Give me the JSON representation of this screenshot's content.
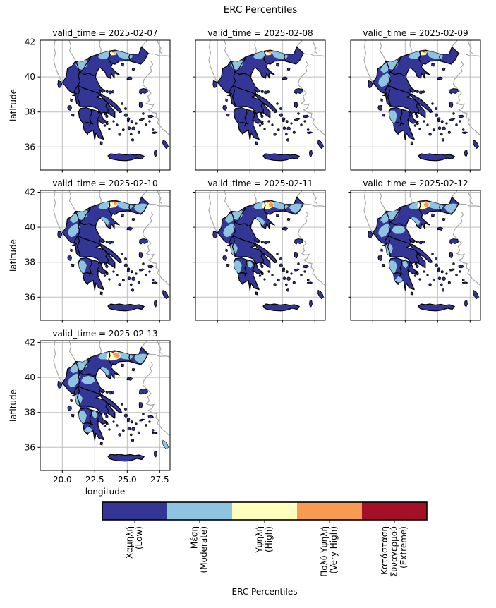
{
  "figure": {
    "title": "ERC Percentiles",
    "background": "#ffffff"
  },
  "axes": {
    "xlabel": "longitude",
    "ylabel": "latitude",
    "x_ticks": [
      "20.0",
      "22.5",
      "25.0",
      "27.5"
    ],
    "y_ticks": [
      "36",
      "38",
      "40",
      "42"
    ]
  },
  "panels": [
    {
      "title": "valid_time = 2025-02-07",
      "hotspot": "s",
      "patches": [
        "pw_mac",
        "pnband_w",
        "pnband_e"
      ]
    },
    {
      "title": "valid_time = 2025-02-08",
      "hotspot": "s",
      "patches": [
        "pw_mac",
        "pnband_w",
        "pnband_e"
      ]
    },
    {
      "title": "valid_time = 2025-02-09",
      "hotspot": "s",
      "patches": [
        "pepirus_n",
        "pw_mac",
        "pnw_epirus",
        "pnband_w",
        "pnband_e",
        "ppelop_w"
      ]
    },
    {
      "title": "valid_time = 2025-02-10",
      "hotspot": "m",
      "patches": [
        "pepirus_n",
        "pw_mac",
        "pnw_epirus",
        "pnband_w",
        "pnband_e",
        "pthrace",
        "pchalkidiki",
        "ppelop_w"
      ]
    },
    {
      "title": "valid_time = 2025-02-11",
      "hotspot": "l",
      "patches": [
        "pepirus_n",
        "pw_mac",
        "pnw_epirus",
        "pnband_w",
        "pnband_e",
        "pthrace",
        "pchalkidiki",
        "pwgreece",
        "ppelop_w",
        "ppelop_ne"
      ]
    },
    {
      "title": "valid_time = 2025-02-12",
      "hotspot": "l",
      "patches": [
        "pepirus_n",
        "pw_mac",
        "pnw_epirus",
        "pnband_w",
        "pnband_e",
        "pthrace",
        "pchalkidiki",
        "pwgreece",
        "pthessaly",
        "ppelop_w",
        "ppelop_ne",
        "ppelop_s"
      ]
    },
    {
      "title": "valid_time = 2025-02-13",
      "hotspot": "xl",
      "patches": [
        "pepirus_n",
        "pw_mac",
        "pnw_epirus",
        "pnband_w",
        "pnband_e",
        "pthrace",
        "pchalkidiki",
        "pwgreece",
        "pthessaly",
        "ppelop_w",
        "ppelop_ne",
        "ppelop_s",
        "prhodes_lb"
      ]
    }
  ],
  "colorbar": {
    "title": "ERC Percentiles",
    "categories": [
      {
        "label_lines": [
          "Χαμηλή",
          "(Low)"
        ],
        "color": "#333695"
      },
      {
        "label_lines": [
          "Μέση",
          "(Moderate)"
        ],
        "color": "#8ec4e0"
      },
      {
        "label_lines": [
          "Υψηλή",
          "(High)"
        ],
        "color": "#ffffbe"
      },
      {
        "label_lines": [
          "Πολύ Υψηλή",
          "(Very High)"
        ],
        "color": "#f89b52"
      },
      {
        "label_lines": [
          "Κατάσταση",
          "Συναγερμού",
          "(Extreme)"
        ],
        "color": "#a50f28"
      }
    ]
  },
  "map_colors": {
    "low": "#333695",
    "moderate": "#8ec4e0",
    "high": "#ffffbe",
    "very_high": "#f89b52",
    "extreme": "#a50f28",
    "grid": "#bdbdbd",
    "neighbor_border": "#a9a9a9",
    "region_border": "#000000",
    "sea": "#ffffff"
  },
  "chart_data": {
    "type": "heatmap",
    "subtype": "faceted choropleth map of Greece (categorical fire-danger percentiles)",
    "title": "ERC Percentiles",
    "facet_variable": "valid_time",
    "facets": [
      "2025-02-07",
      "2025-02-08",
      "2025-02-09",
      "2025-02-10",
      "2025-02-11",
      "2025-02-12",
      "2025-02-13"
    ],
    "grid_layout": {
      "rows": 3,
      "cols": 3,
      "used_panels": 7
    },
    "xlabel": "longitude",
    "ylabel": "latitude",
    "xlim": [
      18.3,
      28.3
    ],
    "ylim": [
      34.7,
      42.1
    ],
    "x_ticks": [
      20.0,
      22.5,
      25.0,
      27.5
    ],
    "y_ticks": [
      36,
      38,
      40,
      42
    ],
    "grid_on": true,
    "legend_position": "bottom horizontal colorbar",
    "legend_title": "ERC Percentiles",
    "categories": [
      {
        "name": "Χαμηλή (Low)",
        "color": "#333695"
      },
      {
        "name": "Μέση (Moderate)",
        "color": "#8ec4e0"
      },
      {
        "name": "Υψηλή (High)",
        "color": "#ffffbe"
      },
      {
        "name": "Πολύ Υψηλή (Very High)",
        "color": "#f89b52"
      },
      {
        "name": "Κατάσταση Συναγερμού (Extreme)",
        "color": "#a50f28"
      }
    ],
    "summary_by_date": [
      {
        "valid_time": "2025-02-07",
        "dominant_class": "Low",
        "notes": "small Moderate patches in NW Macedonia and along north-central border; tiny High/Very High/Extreme spot at the northern border"
      },
      {
        "valid_time": "2025-02-08",
        "dominant_class": "Low",
        "notes": "similar to 02-07; small Moderate band around a tiny Extreme spot in the north"
      },
      {
        "valid_time": "2025-02-09",
        "dominant_class": "Low",
        "notes": "Moderate expands over Epirus/NW Greece and the northern band; small Extreme spot persists"
      },
      {
        "valid_time": "2025-02-10",
        "dominant_class": "Low",
        "notes": "Moderate covers NW Greece, northern band and parts of Thrace and west Peloponnese; High/Extreme spot grows"
      },
      {
        "valid_time": "2025-02-11",
        "dominant_class": "Low/Moderate",
        "notes": "extensive Moderate over west and north Greece; clear High area with Very High and Extreme cap at the northern border"
      },
      {
        "valid_time": "2025-02-12",
        "dominant_class": "Low/Moderate",
        "notes": "Moderate further expands (Thessaly, south Peloponnese); High/Very High/Extreme zone at the northern border"
      },
      {
        "valid_time": "2025-02-13",
        "dominant_class": "Moderate",
        "notes": "largest Moderate extent incl. Rhodes; largest High area with Very High band and Extreme cap at the northern border; Crete stays Low"
      }
    ]
  }
}
